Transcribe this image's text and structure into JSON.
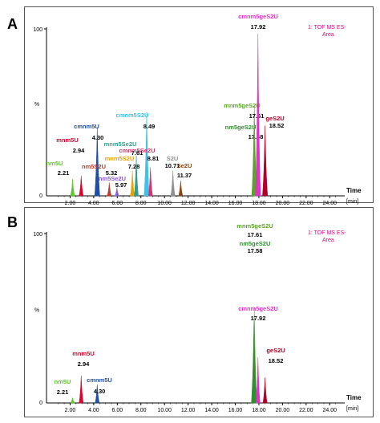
{
  "panels": [
    {
      "letter": "A",
      "legend": [
        "1: TOF MS ES-",
        "Area"
      ],
      "legend_color": "#e6007e",
      "ytick_top": "100",
      "ylabel": "%",
      "ytick_bottom": "0",
      "xlabel": "Time",
      "xunit": "[min]"
    },
    {
      "letter": "B",
      "legend": [
        "1: TOF MS ES-",
        "Area"
      ],
      "legend_color": "#e6007e",
      "ytick_top": "100",
      "ylabel": "%",
      "ytick_bottom": "0",
      "xlabel": "Time",
      "xunit": "[min]"
    }
  ],
  "chart_data": [
    {
      "type": "line",
      "xlim": [
        0,
        25
      ],
      "ylim": [
        0,
        100
      ],
      "xticks": [
        "2.00",
        "4.00",
        "6.00",
        "8.00",
        "10.00",
        "12.00",
        "14.00",
        "16.00",
        "18.00",
        "20.00",
        "22.00",
        "24.00"
      ],
      "xtick_values": [
        2,
        4,
        6,
        8,
        10,
        12,
        14,
        16,
        18,
        20,
        22,
        24
      ],
      "peaks": [
        {
          "name": "nm5U",
          "rt_label": "2.21",
          "rt": 2.21,
          "height": 10,
          "color": "#5cc825"
        },
        {
          "name": "mnm5U",
          "rt_label": "2.94",
          "rt": 2.94,
          "height": 12,
          "color": "#e0002a"
        },
        {
          "name": "cmnm5U",
          "rt_label": "4.30",
          "rt": 4.3,
          "height": 41,
          "color": "#1f4fa5"
        },
        {
          "name": "nm5S2U",
          "rt_label": "5.32",
          "rt": 5.32,
          "height": 8,
          "color": "#c0392b"
        },
        {
          "name": "nm5Se2U",
          "rt_label": "5.97",
          "rt": 5.97,
          "height": 5,
          "color": "#8a5ad8"
        },
        {
          "name": "mnm5S2U",
          "rt_label": "7.28",
          "rt": 7.28,
          "height": 15,
          "color": "#e8a200"
        },
        {
          "name": "mnm5Se2U",
          "rt_label": "7.61",
          "rt": 7.61,
          "height": 24,
          "color": "#2e9e8f"
        },
        {
          "name": "cmnm5S2U",
          "rt_label": "8.49",
          "rt": 8.49,
          "height": 50,
          "color": "#3fc1e8"
        },
        {
          "name": "cmnm5Se2U",
          "rt_label": "8.81",
          "rt": 8.81,
          "height": 17,
          "color": "#d6336c"
        },
        {
          "name": "S2U",
          "rt_label": "10.71",
          "rt": 10.71,
          "height": 15,
          "color": "#909090"
        },
        {
          "name": "Se2U",
          "rt_label": "11.37",
          "rt": 11.37,
          "height": 9,
          "color": "#8b4513"
        },
        {
          "name": "nm5geS2U",
          "rt_label": "17.58",
          "rt": 17.58,
          "height": 40,
          "color": "#2f8f2f"
        },
        {
          "name": "mnm5geS2U",
          "rt_label": "17.61",
          "rt": 17.61,
          "height": 54,
          "color": "#5da32b"
        },
        {
          "name": "cmnm5geS2U",
          "rt_label": "17.92",
          "rt": 17.92,
          "height": 97,
          "color": "#e033c4"
        },
        {
          "name": "geS2U",
          "rt_label": "18.52",
          "rt": 18.52,
          "height": 42,
          "color": "#b0002a"
        }
      ]
    },
    {
      "type": "line",
      "xlim": [
        0,
        25
      ],
      "ylim": [
        0,
        100
      ],
      "xticks": [
        "2.00",
        "4.00",
        "6.00",
        "8.00",
        "10.00",
        "12.00",
        "14.00",
        "16.00",
        "18.00",
        "20.00",
        "22.00",
        "24.00"
      ],
      "xtick_values": [
        2,
        4,
        6,
        8,
        10,
        12,
        14,
        16,
        18,
        20,
        22,
        24
      ],
      "peaks": [
        {
          "name": "nm5U",
          "rt_label": "2.21",
          "rt": 2.21,
          "height": 3,
          "color": "#5cc825"
        },
        {
          "name": "mnm5U",
          "rt_label": "2.94",
          "rt": 2.94,
          "height": 16,
          "color": "#e0002a"
        },
        {
          "name": "cmnm5U",
          "rt_label": "4.30",
          "rt": 4.3,
          "height": 11,
          "color": "#1f4fa5"
        },
        {
          "name": "mnm5geS2U",
          "rt_label": "17.61",
          "rt": 17.61,
          "height": 56,
          "color": "#5da32b"
        },
        {
          "name": "nm5geS2U",
          "rt_label": "17.58",
          "rt": 17.58,
          "height": 48,
          "color": "#2f8f2f"
        },
        {
          "name": "cmnm5geS2U",
          "rt_label": "17.92",
          "rt": 17.92,
          "height": 27,
          "color": "#e033c4"
        },
        {
          "name": "geS2U",
          "rt_label": "18.52",
          "rt": 18.52,
          "height": 15,
          "color": "#b0002a"
        }
      ]
    }
  ]
}
